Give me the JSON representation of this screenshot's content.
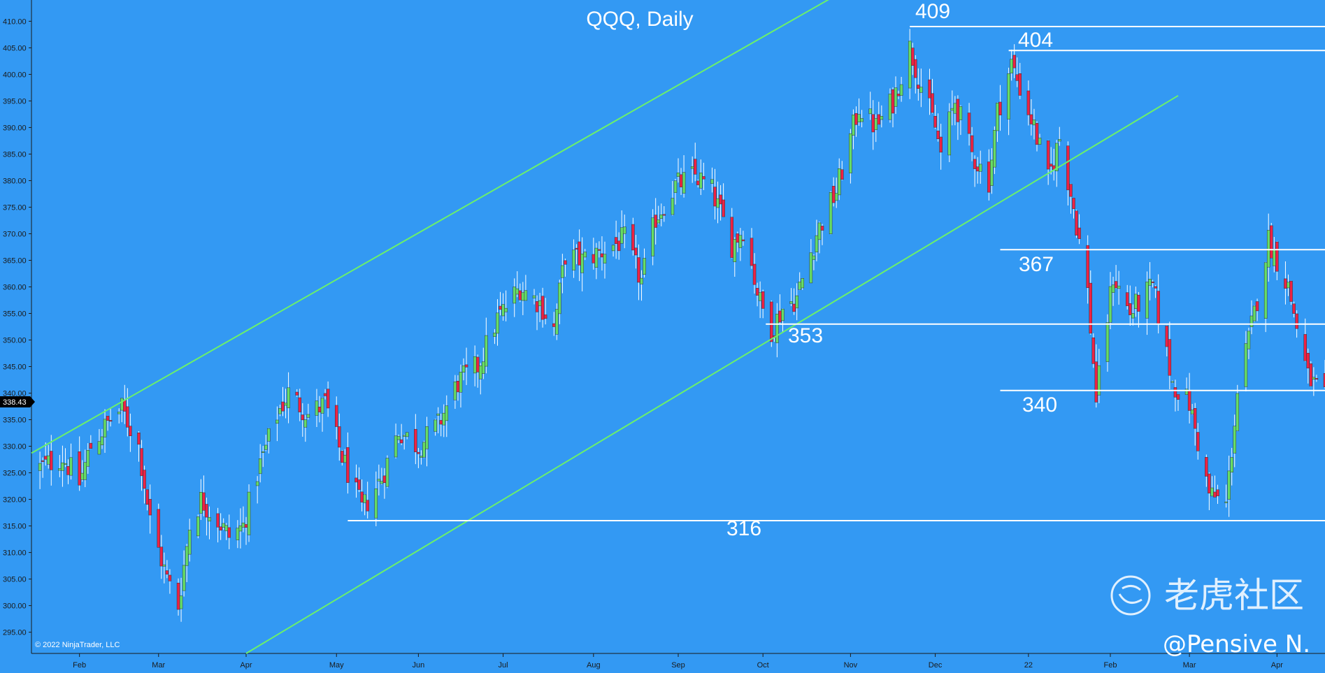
{
  "chart_data": {
    "type": "candlestick",
    "title": "QQQ, Daily",
    "y_range": [
      291,
      414
    ],
    "y_ticks": [
      "295.00",
      "300.00",
      "305.00",
      "310.00",
      "315.00",
      "320.00",
      "325.00",
      "330.00",
      "335.00",
      "340.00",
      "345.00",
      "350.00",
      "355.00",
      "360.00",
      "365.00",
      "370.00",
      "375.00",
      "380.00",
      "385.00",
      "390.00",
      "395.00",
      "400.00",
      "405.00",
      "410.00"
    ],
    "x_range": [
      "2021-01-15",
      "2022-04-18"
    ],
    "x_ticks": [
      {
        "label": "Feb",
        "date": "2021-02-01"
      },
      {
        "label": "Mar",
        "date": "2021-03-01"
      },
      {
        "label": "Apr",
        "date": "2021-04-01"
      },
      {
        "label": "May",
        "date": "2021-05-03"
      },
      {
        "label": "Jun",
        "date": "2021-06-01"
      },
      {
        "label": "Jul",
        "date": "2021-07-01"
      },
      {
        "label": "Aug",
        "date": "2021-08-02"
      },
      {
        "label": "Sep",
        "date": "2021-09-01"
      },
      {
        "label": "Oct",
        "date": "2021-10-01"
      },
      {
        "label": "Nov",
        "date": "2021-11-01"
      },
      {
        "label": "Dec",
        "date": "2021-12-01"
      },
      {
        "label": "22",
        "date": "2022-01-03"
      },
      {
        "label": "Feb",
        "date": "2022-02-01"
      },
      {
        "label": "Mar",
        "date": "2022-03-01"
      },
      {
        "label": "Apr",
        "date": "2022-04-01"
      }
    ],
    "last_price": "338.43",
    "close_path": [
      [
        "2021-01-18",
        326
      ],
      [
        "2021-01-26",
        328
      ],
      [
        "2021-02-01",
        323
      ],
      [
        "2021-02-05",
        330
      ],
      [
        "2021-02-12",
        335
      ],
      [
        "2021-02-16",
        337
      ],
      [
        "2021-02-22",
        330
      ],
      [
        "2021-02-26",
        316
      ],
      [
        "2021-03-04",
        305
      ],
      [
        "2021-03-08",
        300
      ],
      [
        "2021-03-12",
        315
      ],
      [
        "2021-03-16",
        320
      ],
      [
        "2021-03-22",
        316
      ],
      [
        "2021-03-26",
        313
      ],
      [
        "2021-03-31",
        315
      ],
      [
        "2021-04-05",
        325
      ],
      [
        "2021-04-12",
        336
      ],
      [
        "2021-04-16",
        340
      ],
      [
        "2021-04-23",
        336
      ],
      [
        "2021-04-29",
        338
      ],
      [
        "2021-05-05",
        328
      ],
      [
        "2021-05-12",
        318
      ],
      [
        "2021-05-19",
        324
      ],
      [
        "2021-05-25",
        333
      ],
      [
        "2021-06-01",
        330
      ],
      [
        "2021-06-08",
        334
      ],
      [
        "2021-06-15",
        342
      ],
      [
        "2021-06-22",
        345
      ],
      [
        "2021-06-29",
        354
      ],
      [
        "2021-07-07",
        360
      ],
      [
        "2021-07-14",
        357
      ],
      [
        "2021-07-19",
        352
      ],
      [
        "2021-07-23",
        366
      ],
      [
        "2021-07-29",
        365
      ],
      [
        "2021-08-06",
        367
      ],
      [
        "2021-08-13",
        369
      ],
      [
        "2021-08-19",
        361
      ],
      [
        "2021-08-24",
        373
      ],
      [
        "2021-08-31",
        379
      ],
      [
        "2021-09-07",
        381
      ],
      [
        "2021-09-13",
        378
      ],
      [
        "2021-09-20",
        368
      ],
      [
        "2021-09-24",
        371
      ],
      [
        "2021-09-30",
        357
      ],
      [
        "2021-10-04",
        352
      ],
      [
        "2021-10-08",
        356
      ],
      [
        "2021-10-13",
        358
      ],
      [
        "2021-10-20",
        370
      ],
      [
        "2021-10-27",
        378
      ],
      [
        "2021-11-04",
        394
      ],
      [
        "2021-11-10",
        390
      ],
      [
        "2021-11-16",
        395
      ],
      [
        "2021-11-22",
        405
      ],
      [
        "2021-11-26",
        398
      ],
      [
        "2021-12-01",
        390
      ],
      [
        "2021-12-03",
        385
      ],
      [
        "2021-12-08",
        395
      ],
      [
        "2021-12-14",
        385
      ],
      [
        "2021-12-20",
        380
      ],
      [
        "2021-12-23",
        393
      ],
      [
        "2021-12-28",
        402
      ],
      [
        "2022-01-05",
        390
      ],
      [
        "2022-01-10",
        380
      ],
      [
        "2022-01-14",
        388
      ],
      [
        "2022-01-19",
        375
      ],
      [
        "2022-01-24",
        359
      ],
      [
        "2022-01-27",
        339
      ],
      [
        "2022-02-02",
        362
      ],
      [
        "2022-02-08",
        355
      ],
      [
        "2022-02-11",
        357
      ],
      [
        "2022-02-16",
        360
      ],
      [
        "2022-02-23",
        342
      ],
      [
        "2022-03-01",
        338
      ],
      [
        "2022-03-08",
        321
      ],
      [
        "2022-03-14",
        319
      ],
      [
        "2022-03-18",
        340
      ],
      [
        "2022-03-24",
        355
      ],
      [
        "2022-03-29",
        369
      ],
      [
        "2022-04-05",
        360
      ],
      [
        "2022-04-12",
        343
      ],
      [
        "2022-04-18",
        339
      ]
    ],
    "horizontal_levels": [
      {
        "label": "409",
        "value": 409,
        "from": "2021-11-22"
      },
      {
        "label": "404",
        "value": 404.5,
        "from": "2021-12-27"
      },
      {
        "label": "367",
        "value": 367,
        "from": "2021-12-24"
      },
      {
        "label": "353",
        "value": 353,
        "from": "2021-10-02"
      },
      {
        "label": "340",
        "value": 340.5,
        "from": "2021-12-24"
      },
      {
        "label": "316",
        "value": 316,
        "from": "2021-05-07"
      }
    ],
    "trend_lines": [
      {
        "from": [
          "2021-01-15",
          328.7
        ],
        "to": [
          "2021-11-26",
          424
        ]
      },
      {
        "from": [
          "2021-04-01",
          291
        ],
        "to": [
          "2022-02-25",
          396
        ]
      }
    ],
    "colors": {
      "background": "#3399f3",
      "up": "#66dd66",
      "down": "#ee2244",
      "trend": "#6bf06b",
      "level": "#ffffff"
    },
    "copyright": "© 2022 NinjaTrader, LLC",
    "watermark": "老虎社区",
    "handle": "@Pensive N."
  }
}
